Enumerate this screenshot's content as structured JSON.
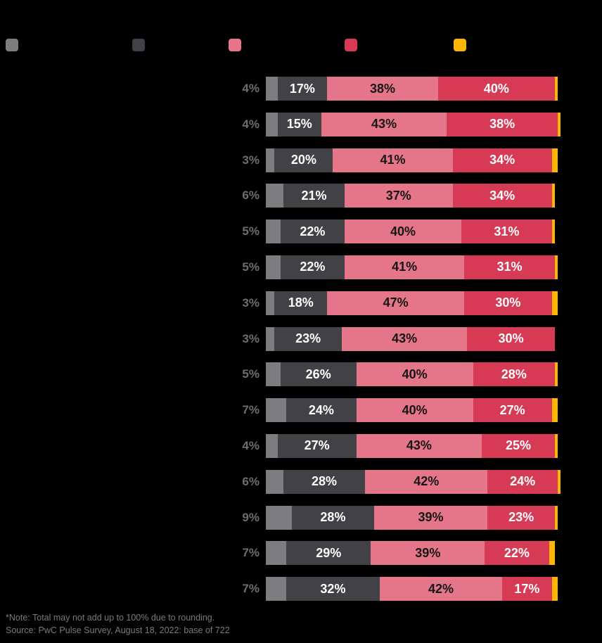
{
  "legend": {
    "swatches": [
      "#7d7d81",
      "#414146",
      "#e57588",
      "#d63a55",
      "#ffb600"
    ]
  },
  "chart_data": {
    "type": "bar",
    "orientation": "horizontal",
    "stacked": true,
    "unit": "%",
    "segment_order": [
      "gray",
      "charcoal",
      "pink",
      "red",
      "yellow"
    ],
    "segment_colors": {
      "gray": "#7d7d81",
      "charcoal": "#414146",
      "pink": "#e57588",
      "red": "#d63a55",
      "yellow": "#ffb600"
    },
    "labeled_segments": [
      "charcoal",
      "pink",
      "red"
    ],
    "outside_label_segment": 0,
    "rows": [
      {
        "values": [
          4,
          17,
          38,
          40,
          1
        ]
      },
      {
        "values": [
          4,
          15,
          43,
          38,
          1
        ]
      },
      {
        "values": [
          3,
          20,
          41,
          34,
          2
        ]
      },
      {
        "values": [
          6,
          21,
          37,
          34,
          1
        ]
      },
      {
        "values": [
          5,
          22,
          40,
          31,
          1
        ]
      },
      {
        "values": [
          5,
          22,
          41,
          31,
          1
        ]
      },
      {
        "values": [
          3,
          18,
          47,
          30,
          2
        ]
      },
      {
        "values": [
          3,
          23,
          43,
          30,
          0
        ]
      },
      {
        "values": [
          5,
          26,
          40,
          28,
          1
        ]
      },
      {
        "values": [
          7,
          24,
          40,
          27,
          2
        ]
      },
      {
        "values": [
          4,
          27,
          43,
          25,
          1
        ]
      },
      {
        "values": [
          6,
          28,
          42,
          24,
          1
        ]
      },
      {
        "values": [
          9,
          28,
          39,
          23,
          1
        ]
      },
      {
        "values": [
          7,
          29,
          39,
          22,
          2
        ]
      },
      {
        "values": [
          7,
          32,
          42,
          17,
          2
        ]
      }
    ],
    "xlim": [
      0,
      100
    ]
  },
  "footer": {
    "note": "*Note: Total may not add up to 100% due to rounding.",
    "source": "Source: PwC Pulse Survey, August 18, 2022: base of 722"
  }
}
